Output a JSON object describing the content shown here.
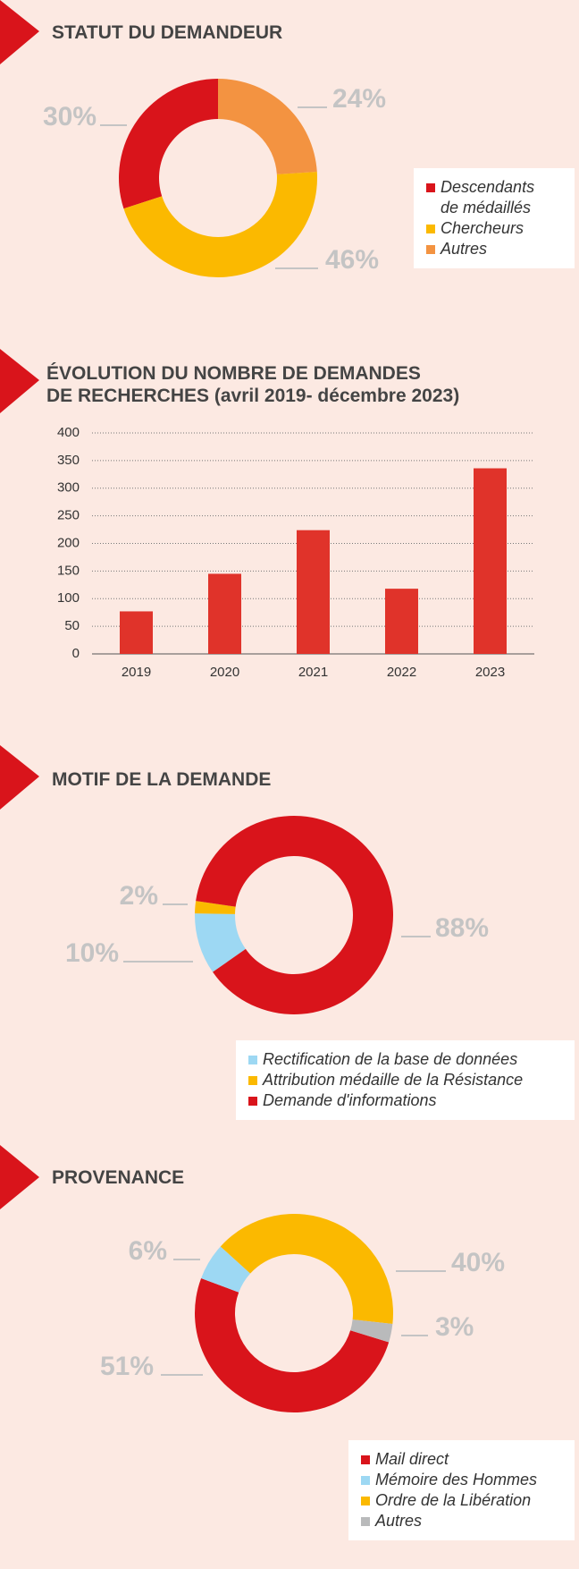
{
  "chart_data": [
    {
      "type": "pie",
      "donut": true,
      "title": "STATUT DU DEMANDEUR",
      "categories": [
        "Descendants de médaillés",
        "Chercheurs",
        "Autres"
      ],
      "values": [
        30,
        46,
        24
      ],
      "value_labels": [
        "30%",
        "46%",
        "24%"
      ],
      "colors": [
        "#d9141b",
        "#fbb900",
        "#f39341"
      ]
    },
    {
      "type": "bar",
      "title": [
        "ÉVOLUTION DU NOMBRE DE DEMANDES",
        "DE RECHERCHES (avril 2019- décembre 2023)"
      ],
      "categories": [
        "2019",
        "2020",
        "2021",
        "2022",
        "2023"
      ],
      "values": [
        77,
        145,
        224,
        118,
        336
      ],
      "color": "#e0332a",
      "ylim": [
        0,
        400
      ],
      "yticks": [
        0,
        50,
        100,
        150,
        200,
        250,
        300,
        350,
        400
      ],
      "grid": true
    },
    {
      "type": "pie",
      "donut": true,
      "title": "MOTIF DE LA DEMANDE",
      "categories": [
        "Rectification de la base de données",
        "Attribution médaille de la Résistance",
        "Demande d'informations"
      ],
      "values": [
        10,
        2,
        88
      ],
      "value_labels": [
        "10%",
        "2%",
        "88%"
      ],
      "colors": [
        "#9dd8f3",
        "#fbb900",
        "#d9141b"
      ]
    },
    {
      "type": "pie",
      "donut": true,
      "title": "PROVENANCE",
      "categories": [
        "Mail direct",
        "Mémoire des Hommes",
        "Ordre de la Libération",
        "Autres"
      ],
      "values": [
        51,
        6,
        40,
        3
      ],
      "value_labels": [
        "51%",
        "6%",
        "40%",
        "3%"
      ],
      "colors": [
        "#d9141b",
        "#9dd8f3",
        "#fbb900",
        "#b9babb"
      ]
    }
  ]
}
